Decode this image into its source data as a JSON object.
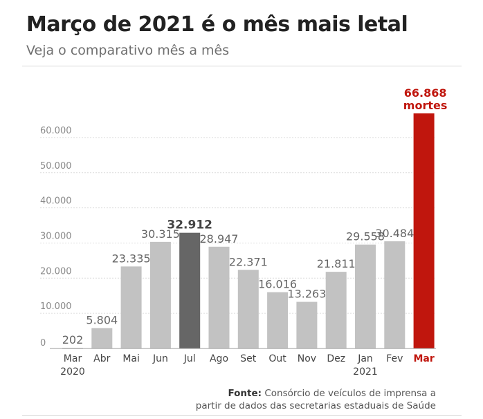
{
  "header": {
    "title": "Março de 2021 é o mês mais letal",
    "subtitle": "Veja o comparativo mês a mês"
  },
  "source": {
    "label": "Fonte:",
    "line1": "Consórcio de veículos de imprensa a",
    "line2": "partir de dados das secretarias estaduais de Saúde"
  },
  "colors": {
    "bar_default": "#c2c2c2",
    "bar_highlight_dark": "#666666",
    "bar_highlight_red": "#c0160d",
    "grid": "#dcdcdc",
    "axis": "#999999",
    "tick_text": "#8a8a8a",
    "category_text": "#444444",
    "value_text": "#666666"
  },
  "chart_data": {
    "type": "bar",
    "title": "Março de 2021 é o mês mais letal",
    "subtitle": "Veja o comparativo mês a mês",
    "ylim": [
      0,
      66868
    ],
    "yticks": [
      0,
      10000,
      20000,
      30000,
      40000,
      50000,
      60000
    ],
    "ytick_labels": [
      "0",
      "10.000",
      "20.000",
      "30.000",
      "40.000",
      "50.000",
      "60.000"
    ],
    "grid": true,
    "categories": [
      "Mar",
      "Abr",
      "Mai",
      "Jun",
      "Jul",
      "Ago",
      "Set",
      "Out",
      "Nov",
      "Dez",
      "Jan",
      "Fev",
      "Mar"
    ],
    "category_sublabels": [
      "2020",
      "",
      "",
      "",
      "",
      "",
      "",
      "",
      "",
      "",
      "2021",
      "",
      ""
    ],
    "values": [
      202,
      5804,
      23335,
      30315,
      32912,
      28947,
      22371,
      16016,
      13263,
      21811,
      29558,
      30484,
      66868
    ],
    "value_labels": [
      "202",
      "5.804",
      "23.335",
      "30.315",
      "32.912",
      "28.947",
      "22.371",
      "16.016",
      "13.263",
      "21.811",
      "29.558",
      "30.484",
      "66.868"
    ],
    "value_label_suffix_last": "mortes",
    "highlight": {
      "dark": [
        4
      ],
      "red": [
        12
      ]
    }
  }
}
